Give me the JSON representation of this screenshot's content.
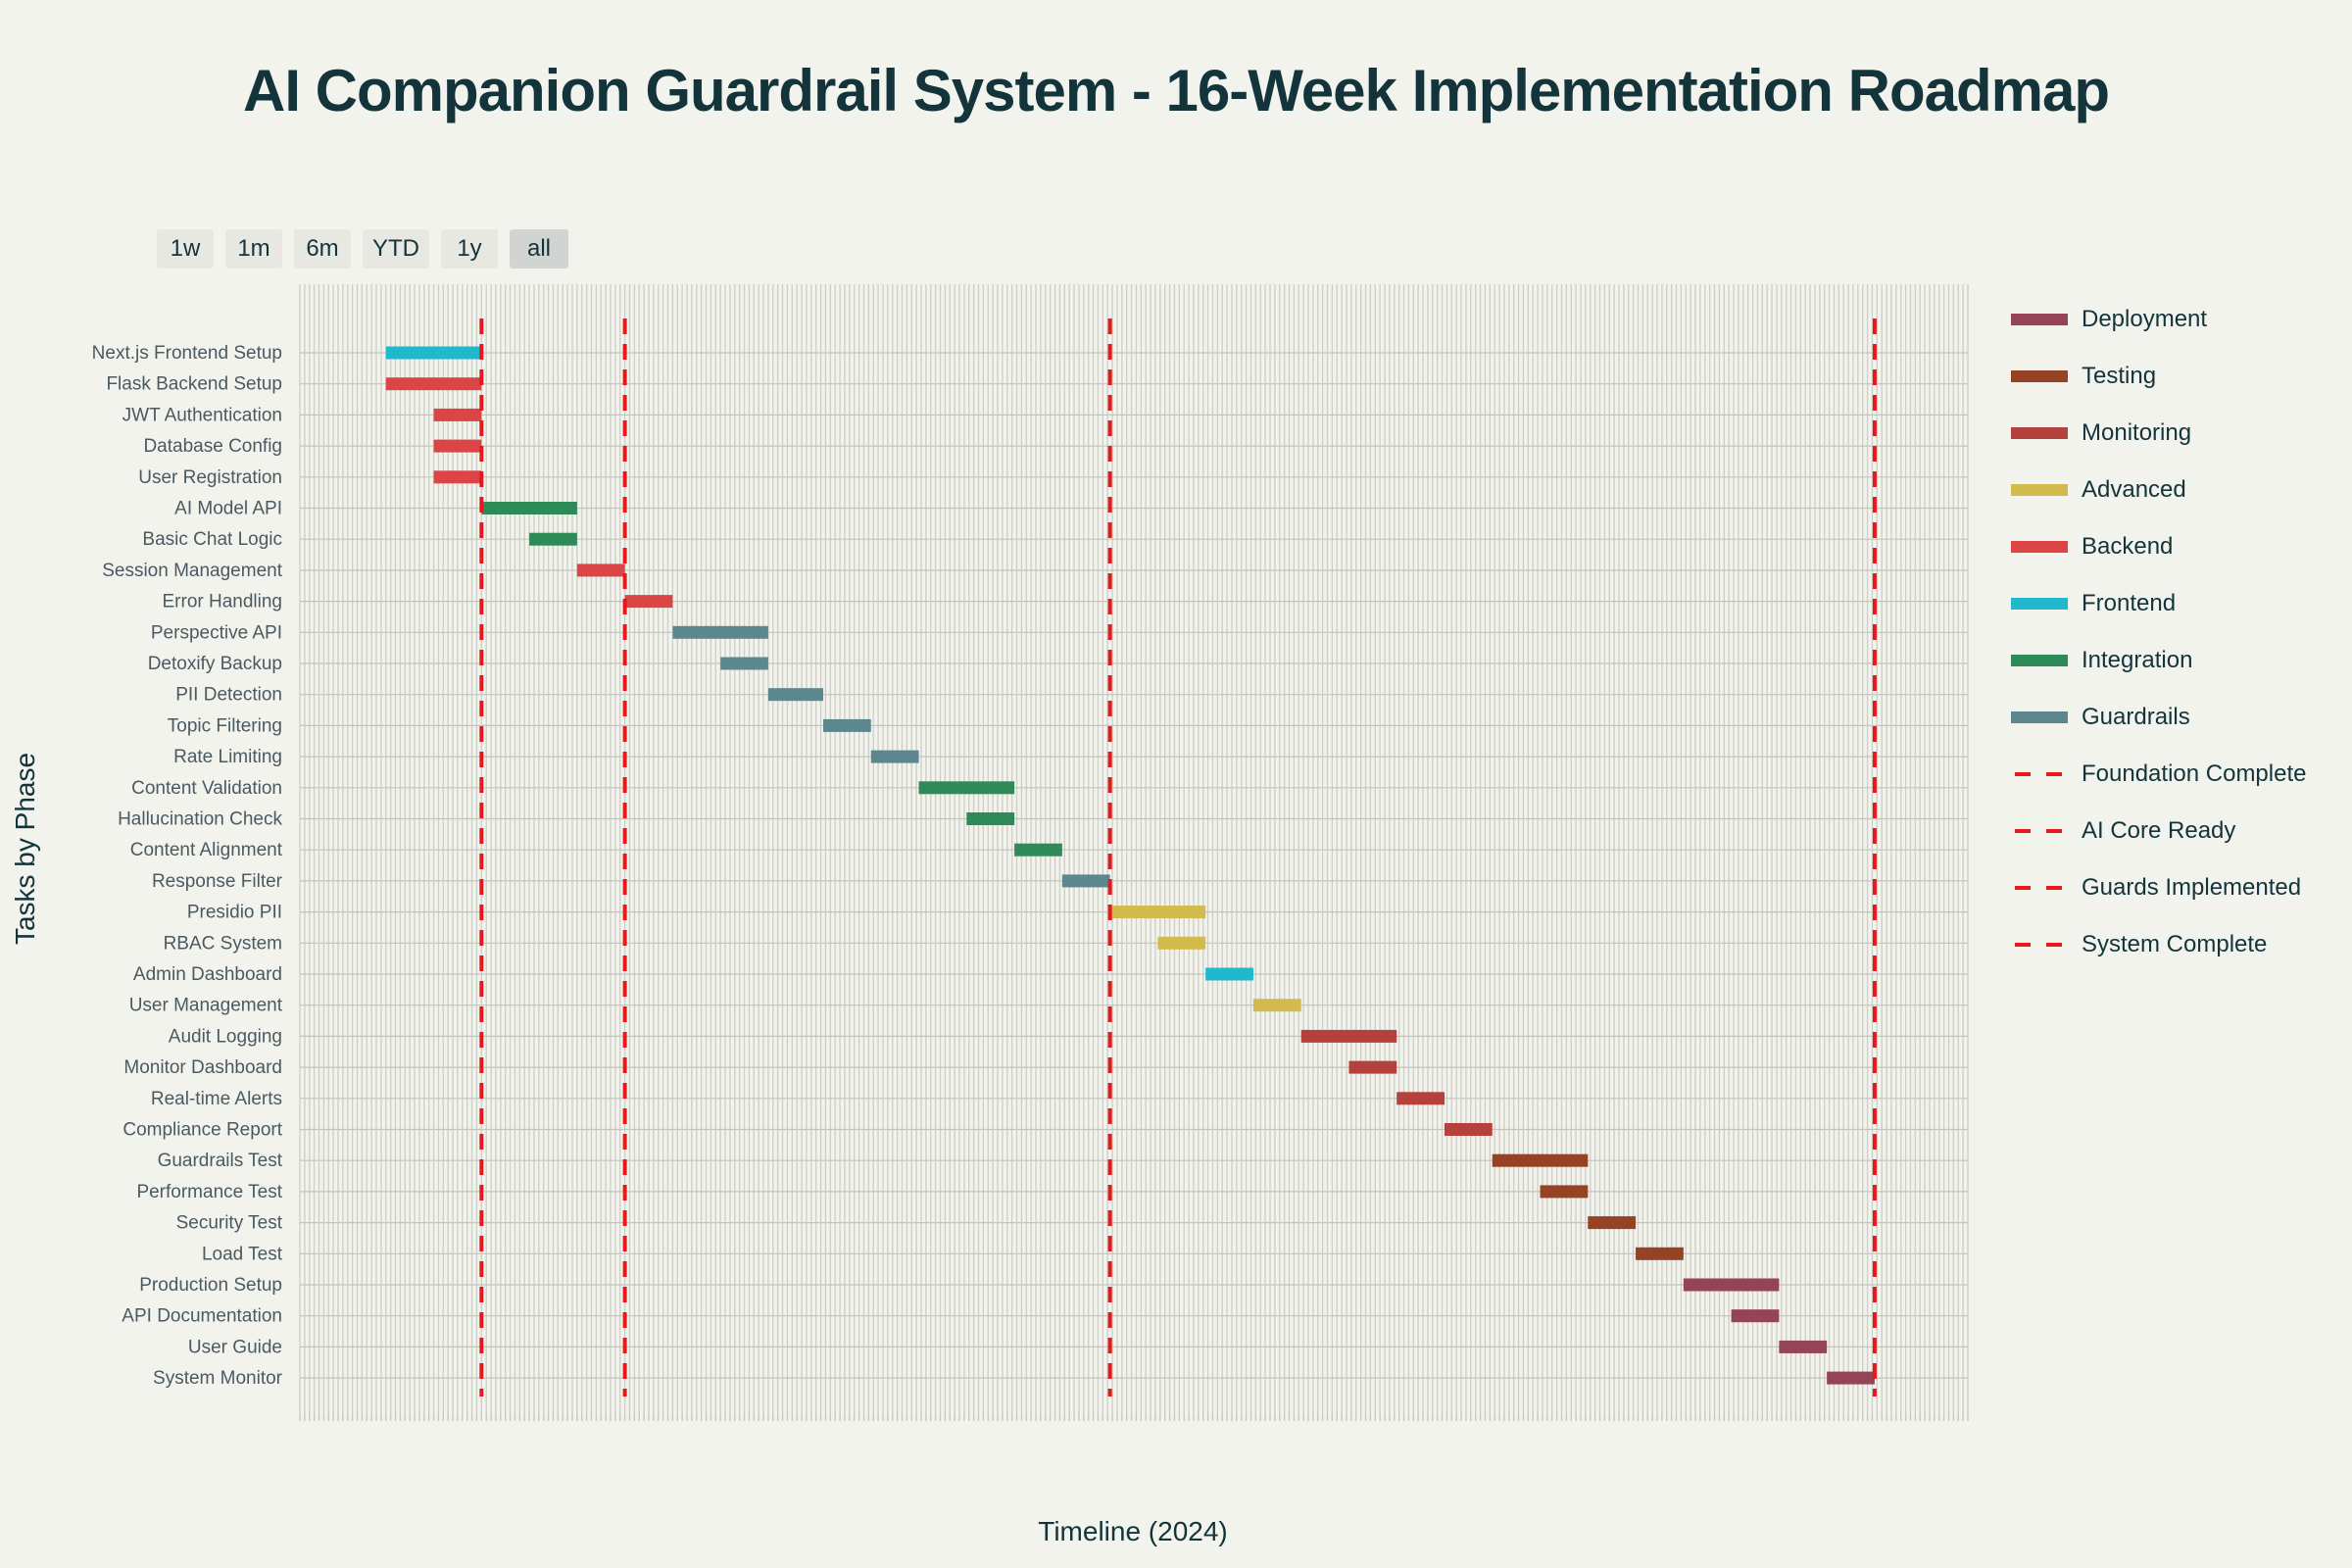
{
  "title": "AI Companion Guardrail System - 16-Week Implementation Roadmap",
  "range_buttons": [
    {
      "label": "1w",
      "active": false
    },
    {
      "label": "1m",
      "active": false
    },
    {
      "label": "6m",
      "active": false
    },
    {
      "label": "YTD",
      "active": false
    },
    {
      "label": "1y",
      "active": false
    },
    {
      "label": "all",
      "active": true
    }
  ],
  "colors": {
    "Deployment": "#944454",
    "Testing": "#964325",
    "Monitoring": "#b4413c",
    "Advanced": "#d2ba4c",
    "Backend": "#db4545",
    "Frontend": "#1fb8cd",
    "Integration": "#2e8b57",
    "Guardrails": "#5d878f",
    "milestone": "#e8171b"
  },
  "legend": [
    {
      "label": "Deployment",
      "kind": "bar"
    },
    {
      "label": "Testing",
      "kind": "bar"
    },
    {
      "label": "Monitoring",
      "kind": "bar"
    },
    {
      "label": "Advanced",
      "kind": "bar"
    },
    {
      "label": "Backend",
      "kind": "bar"
    },
    {
      "label": "Frontend",
      "kind": "bar"
    },
    {
      "label": "Integration",
      "kind": "bar"
    },
    {
      "label": "Guardrails",
      "kind": "bar"
    },
    {
      "label": "Foundation Complete",
      "kind": "milestone"
    },
    {
      "label": "AI Core Ready",
      "kind": "milestone"
    },
    {
      "label": "Guards Implemented",
      "kind": "milestone"
    },
    {
      "label": "System Complete",
      "kind": "milestone"
    }
  ],
  "chart_data": {
    "type": "gantt",
    "title": "AI Companion Guardrail System - 16-Week Implementation Roadmap",
    "xlabel": "Timeline (2024)",
    "ylabel": "Tasks by Phase",
    "x_unit": "day of 2024 (Jan 1 = 0)",
    "xlim": [
      -18,
      331
    ],
    "grid": true,
    "legend_position": "right",
    "tasks": [
      {
        "name": "Next.js Frontend Setup",
        "phase": "Frontend",
        "start": 0,
        "end": 20
      },
      {
        "name": "Flask Backend Setup",
        "phase": "Backend",
        "start": 0,
        "end": 20
      },
      {
        "name": "JWT Authentication",
        "phase": "Backend",
        "start": 10,
        "end": 20
      },
      {
        "name": "Database Config",
        "phase": "Backend",
        "start": 10,
        "end": 20
      },
      {
        "name": "User Registration",
        "phase": "Backend",
        "start": 10,
        "end": 20
      },
      {
        "name": "AI Model API",
        "phase": "Integration",
        "start": 20,
        "end": 40
      },
      {
        "name": "Basic Chat Logic",
        "phase": "Integration",
        "start": 30,
        "end": 40
      },
      {
        "name": "Session Management",
        "phase": "Backend",
        "start": 40,
        "end": 50
      },
      {
        "name": "Error Handling",
        "phase": "Backend",
        "start": 50,
        "end": 60
      },
      {
        "name": "Perspective API",
        "phase": "Guardrails",
        "start": 60,
        "end": 80
      },
      {
        "name": "Detoxify Backup",
        "phase": "Guardrails",
        "start": 70,
        "end": 80
      },
      {
        "name": "PII Detection",
        "phase": "Guardrails",
        "start": 80,
        "end": 91.5
      },
      {
        "name": "Topic Filtering",
        "phase": "Guardrails",
        "start": 91.5,
        "end": 101.5
      },
      {
        "name": "Rate Limiting",
        "phase": "Guardrails",
        "start": 101.5,
        "end": 111.5
      },
      {
        "name": "Content Validation",
        "phase": "Integration",
        "start": 111.5,
        "end": 131.5
      },
      {
        "name": "Hallucination Check",
        "phase": "Integration",
        "start": 121.5,
        "end": 131.5
      },
      {
        "name": "Content Alignment",
        "phase": "Integration",
        "start": 131.5,
        "end": 141.5
      },
      {
        "name": "Response Filter",
        "phase": "Guardrails",
        "start": 141.5,
        "end": 151.5
      },
      {
        "name": "Presidio PII",
        "phase": "Advanced",
        "start": 151.5,
        "end": 171.5
      },
      {
        "name": "RBAC System",
        "phase": "Advanced",
        "start": 161.5,
        "end": 171.5
      },
      {
        "name": "Admin Dashboard",
        "phase": "Frontend",
        "start": 171.5,
        "end": 181.5
      },
      {
        "name": "User Management",
        "phase": "Advanced",
        "start": 181.5,
        "end": 191.5
      },
      {
        "name": "Audit Logging",
        "phase": "Monitoring",
        "start": 191.5,
        "end": 211.5
      },
      {
        "name": "Monitor Dashboard",
        "phase": "Monitoring",
        "start": 201.5,
        "end": 211.5
      },
      {
        "name": "Real-time Alerts",
        "phase": "Monitoring",
        "start": 211.5,
        "end": 221.5
      },
      {
        "name": "Compliance Report",
        "phase": "Monitoring",
        "start": 221.5,
        "end": 231.5
      },
      {
        "name": "Guardrails Test",
        "phase": "Testing",
        "start": 231.5,
        "end": 251.5
      },
      {
        "name": "Performance Test",
        "phase": "Testing",
        "start": 241.5,
        "end": 251.5
      },
      {
        "name": "Security Test",
        "phase": "Testing",
        "start": 251.5,
        "end": 261.5
      },
      {
        "name": "Load Test",
        "phase": "Testing",
        "start": 261.5,
        "end": 271.5
      },
      {
        "name": "Production Setup",
        "phase": "Deployment",
        "start": 271.5,
        "end": 291.5
      },
      {
        "name": "API Documentation",
        "phase": "Deployment",
        "start": 281.5,
        "end": 291.5
      },
      {
        "name": "User Guide",
        "phase": "Deployment",
        "start": 291.5,
        "end": 301.5
      },
      {
        "name": "System Monitor",
        "phase": "Deployment",
        "start": 301.5,
        "end": 311.5
      }
    ],
    "milestones": [
      {
        "name": "Foundation Complete",
        "x": 20
      },
      {
        "name": "AI Core Ready",
        "x": 50
      },
      {
        "name": "Guards Implemented",
        "x": 151.5
      },
      {
        "name": "System Complete",
        "x": 311.5
      }
    ]
  }
}
